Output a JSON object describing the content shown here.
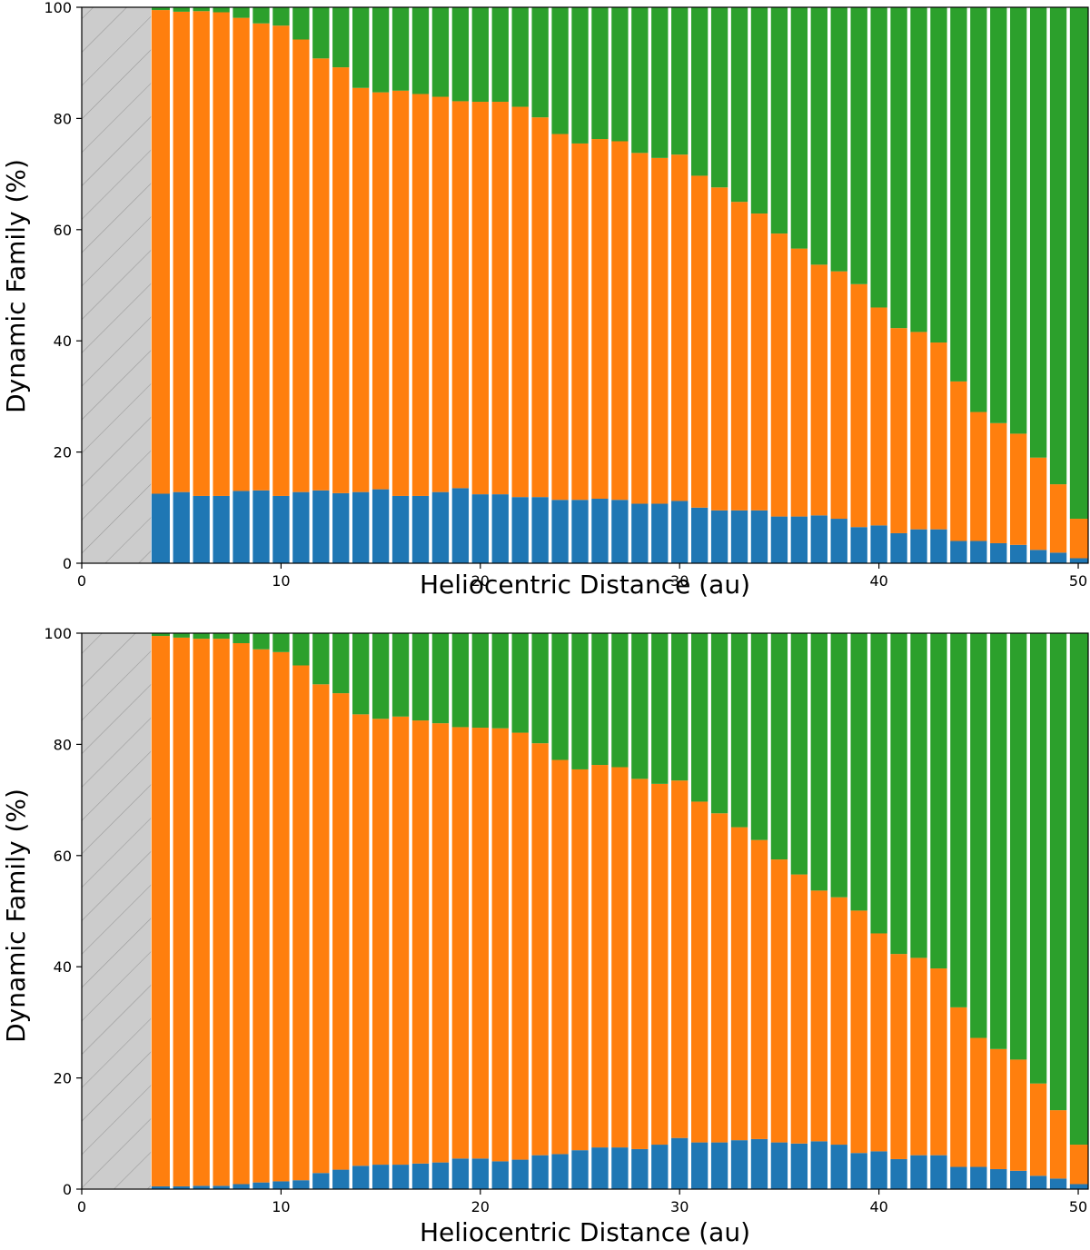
{
  "chart_data": [
    {
      "type": "bar",
      "stacked": true,
      "xlabel": "Heliocentric Distance (au)",
      "ylabel": "Dynamic Family (%)",
      "xlim": [
        0,
        50.5
      ],
      "ylim": [
        0,
        100
      ],
      "xticks": [
        0,
        10,
        20,
        30,
        40,
        50
      ],
      "yticks": [
        0,
        20,
        40,
        60,
        80,
        100
      ],
      "grid": false,
      "legend": "none",
      "excluded_region": {
        "x_from": 0,
        "x_to": 3.5,
        "fill": "#cccccc",
        "hatch": "diagonal"
      },
      "bin_width": 1,
      "x": [
        4,
        5,
        6,
        7,
        8,
        9,
        10,
        11,
        12,
        13,
        14,
        15,
        16,
        17,
        18,
        19,
        20,
        21,
        22,
        23,
        24,
        25,
        26,
        27,
        28,
        29,
        30,
        31,
        32,
        33,
        34,
        35,
        36,
        37,
        38,
        39,
        40,
        41,
        42,
        43,
        44,
        45,
        46,
        47,
        48,
        49,
        50
      ],
      "series": [
        {
          "color": "#1f77b4",
          "values": [
            12.5,
            12.8,
            12.1,
            12.1,
            13.0,
            13.1,
            12.1,
            12.8,
            13.1,
            12.6,
            12.8,
            13.3,
            12.1,
            12.1,
            12.8,
            13.5,
            12.4,
            12.4,
            11.9,
            11.9,
            11.4,
            11.4,
            11.6,
            11.4,
            10.7,
            10.7,
            11.2,
            10.0,
            9.5,
            9.5,
            9.5,
            8.4,
            8.4,
            8.6,
            8.0,
            6.5,
            6.8,
            5.4,
            6.1,
            6.1,
            4.0,
            4.0,
            3.6,
            3.3,
            2.4,
            1.9,
            0.9
          ]
        },
        {
          "color": "#ff7f0e",
          "values": [
            87.0,
            86.4,
            87.2,
            87.0,
            85.1,
            84.0,
            84.6,
            81.4,
            77.7,
            76.6,
            72.7,
            71.4,
            72.9,
            72.3,
            71.1,
            69.6,
            70.6,
            70.6,
            70.2,
            68.3,
            65.8,
            64.1,
            64.7,
            64.5,
            63.1,
            62.2,
            62.3,
            59.7,
            58.1,
            55.5,
            53.4,
            50.9,
            48.2,
            45.1,
            44.5,
            43.7,
            39.2,
            36.9,
            35.5,
            33.6,
            28.7,
            23.2,
            21.6,
            20.0,
            16.6,
            12.3,
            7.1
          ]
        },
        {
          "color": "#2ca02c",
          "values": [
            0.5,
            0.8,
            0.7,
            0.9,
            1.9,
            2.9,
            3.3,
            5.8,
            9.2,
            10.8,
            14.5,
            15.3,
            15.0,
            15.6,
            16.1,
            16.9,
            17.0,
            17.0,
            17.9,
            19.8,
            22.8,
            24.5,
            23.7,
            24.1,
            26.2,
            27.1,
            26.5,
            30.3,
            32.4,
            35.0,
            37.1,
            40.7,
            43.4,
            46.3,
            47.5,
            49.8,
            54.0,
            57.7,
            58.4,
            60.3,
            67.3,
            72.8,
            74.8,
            76.7,
            81.0,
            85.8,
            92.0
          ]
        }
      ]
    },
    {
      "type": "bar",
      "stacked": true,
      "xlabel": "Heliocentric Distance (au)",
      "ylabel": "Dynamic Family (%)",
      "xlim": [
        0,
        50.5
      ],
      "ylim": [
        0,
        100
      ],
      "xticks": [
        0,
        10,
        20,
        30,
        40,
        50
      ],
      "yticks": [
        0,
        20,
        40,
        60,
        80,
        100
      ],
      "grid": false,
      "legend": "none",
      "excluded_region": {
        "x_from": 0,
        "x_to": 3.5,
        "fill": "#cccccc",
        "hatch": "diagonal"
      },
      "bin_width": 1,
      "x": [
        4,
        5,
        6,
        7,
        8,
        9,
        10,
        11,
        12,
        13,
        14,
        15,
        16,
        17,
        18,
        19,
        20,
        21,
        22,
        23,
        24,
        25,
        26,
        27,
        28,
        29,
        30,
        31,
        32,
        33,
        34,
        35,
        36,
        37,
        38,
        39,
        40,
        41,
        42,
        43,
        44,
        45,
        46,
        47,
        48,
        49,
        50
      ],
      "series": [
        {
          "color": "#1f77b4",
          "values": [
            0.5,
            0.5,
            0.6,
            0.6,
            0.9,
            1.2,
            1.4,
            1.6,
            2.9,
            3.5,
            4.2,
            4.4,
            4.4,
            4.6,
            4.8,
            5.5,
            5.5,
            5.0,
            5.3,
            6.1,
            6.3,
            7.0,
            7.5,
            7.5,
            7.2,
            8.0,
            9.2,
            8.4,
            8.4,
            8.8,
            9.0,
            8.4,
            8.2,
            8.6,
            8.0,
            6.5,
            6.8,
            5.4,
            6.1,
            6.1,
            4.0,
            4.0,
            3.6,
            3.3,
            2.4,
            1.9,
            0.9
          ]
        },
        {
          "color": "#ff7f0e",
          "values": [
            99.0,
            98.7,
            98.4,
            98.4,
            97.3,
            95.9,
            95.2,
            92.6,
            87.9,
            85.7,
            81.2,
            80.2,
            80.6,
            79.7,
            79.0,
            77.6,
            77.5,
            77.9,
            76.8,
            74.1,
            70.9,
            68.5,
            68.8,
            68.4,
            66.6,
            64.9,
            64.3,
            61.3,
            59.2,
            56.3,
            53.8,
            50.9,
            48.4,
            45.1,
            44.5,
            43.6,
            39.2,
            36.9,
            35.5,
            33.6,
            28.7,
            23.2,
            21.6,
            20.0,
            16.6,
            12.3,
            7.1
          ]
        },
        {
          "color": "#2ca02c",
          "values": [
            0.5,
            0.8,
            1.0,
            1.0,
            1.8,
            2.9,
            3.4,
            5.8,
            9.2,
            10.8,
            14.6,
            15.4,
            15.0,
            15.7,
            16.2,
            16.9,
            17.0,
            17.1,
            17.9,
            19.8,
            22.8,
            24.5,
            23.7,
            24.1,
            26.2,
            27.1,
            26.5,
            30.3,
            32.4,
            34.9,
            37.2,
            40.7,
            43.4,
            46.3,
            47.5,
            49.9,
            54.0,
            57.7,
            58.4,
            60.3,
            67.3,
            72.8,
            74.8,
            76.7,
            81.0,
            85.8,
            92.0
          ]
        }
      ]
    }
  ]
}
